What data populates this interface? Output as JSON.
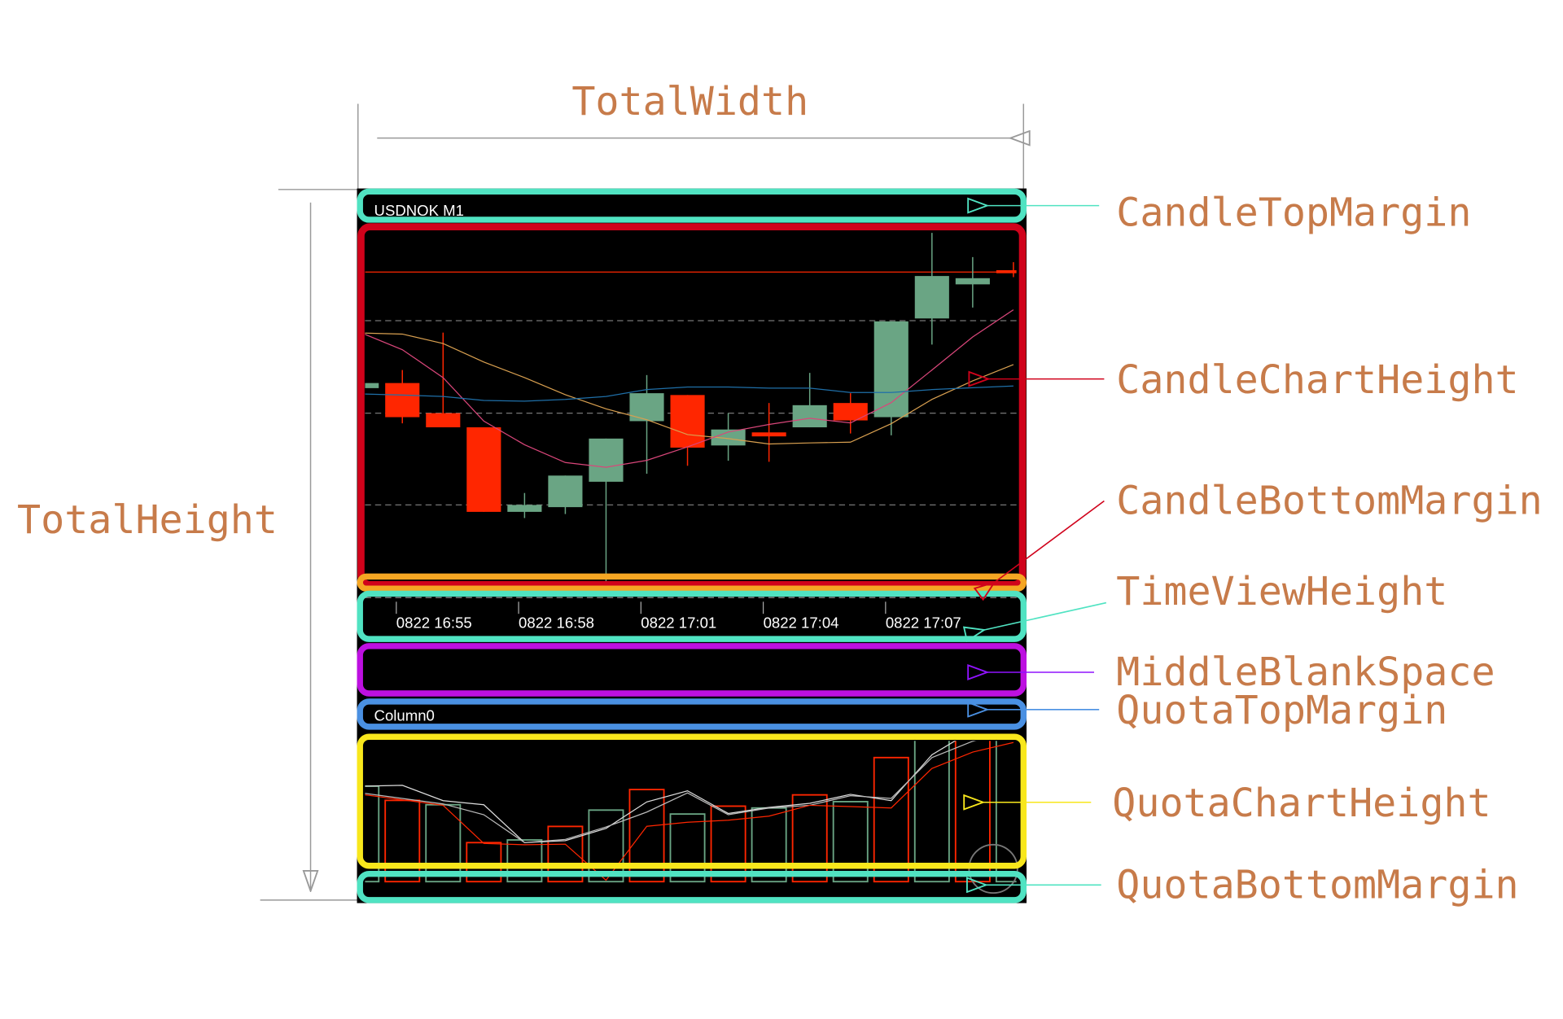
{
  "labels": {
    "total_width": "TotalWidth",
    "total_height": "TotalHeight",
    "candle_top_margin": "CandleTopMargin",
    "candle_chart_height": "CandleChartHeight",
    "candle_bottom_margin": "CandleBottomMargin",
    "time_view_height": "TimeViewHeight",
    "middle_blank_space": "MiddleBlankSpace",
    "quota_top_margin": "QuotaTopMargin",
    "quota_chart_height": "QuotaChartHeight",
    "quota_bottom_margin": "QuotaBottomMargin"
  },
  "chart": {
    "symbol_title": "USDNOK M1",
    "quota_title": "Column0",
    "time_labels": [
      "0822 16:55",
      "0822 16:58",
      "0822 17:01",
      "0822 17:04",
      "0822 17:07"
    ]
  },
  "colors": {
    "label": "#c77b4a",
    "teal": "#50e3c2",
    "red_box": "#d0021b",
    "orange": "#f5a623",
    "purple": "#bd10e0",
    "blue": "#4a90e2",
    "yellow": "#f8e71c",
    "up_candle": "#6aa584",
    "down_candle": "#ff2600",
    "ma_slow": "#d9a050",
    "ma_fast": "#d9467a",
    "ma_long": "#1f6fa8",
    "quota_line_1": "#dddddd",
    "quota_line_2": "#bbbbbb",
    "quota_line_3": "#ff2600"
  },
  "chart_data": {
    "type": "candlestick",
    "candles": [
      {
        "o": 54.7,
        "h": 56.1,
        "l": 54.7,
        "c": 56.1
      },
      {
        "o": 56.1,
        "h": 59.7,
        "l": 45.0,
        "c": 46.7
      },
      {
        "o": 47.8,
        "h": 70.0,
        "l": 43.9,
        "c": 43.9
      },
      {
        "o": 43.9,
        "h": 43.9,
        "l": 20.6,
        "c": 20.6
      },
      {
        "o": 20.6,
        "h": 25.8,
        "l": 18.9,
        "c": 22.5
      },
      {
        "o": 21.9,
        "h": 30.6,
        "l": 20.0,
        "c": 30.6
      },
      {
        "o": 28.9,
        "h": 40.8,
        "l": 1.1,
        "c": 40.8
      },
      {
        "o": 45.6,
        "h": 58.3,
        "l": 31.1,
        "c": 53.3
      },
      {
        "o": 52.8,
        "h": 52.8,
        "l": 33.3,
        "c": 38.3
      },
      {
        "o": 38.9,
        "h": 47.8,
        "l": 34.7,
        "c": 43.3
      },
      {
        "o": 42.5,
        "h": 50.6,
        "l": 34.4,
        "c": 41.4
      },
      {
        "o": 43.9,
        "h": 58.9,
        "l": 43.9,
        "c": 50.0
      },
      {
        "o": 50.6,
        "h": 53.3,
        "l": 42.2,
        "c": 45.8
      },
      {
        "o": 46.7,
        "h": 73.1,
        "l": 41.7,
        "c": 73.1
      },
      {
        "o": 73.9,
        "h": 97.5,
        "l": 66.7,
        "c": 85.6
      },
      {
        "o": 83.3,
        "h": 90.8,
        "l": 76.9,
        "c": 85.0
      },
      {
        "o": 87.2,
        "h": 89.4,
        "l": 85.3,
        "c": 86.4
      }
    ],
    "current_price_line": 86.7,
    "grid_levels": [
      73.3,
      47.8,
      22.5,
      -3.0
    ],
    "ma_lines": {
      "slow": [
        69.9,
        69.6,
        67.0,
        61.9,
        57.6,
        52.9,
        49.0,
        46.0,
        41.9,
        40.8,
        39.3,
        39.6,
        39.8,
        44.9,
        51.6,
        56.7,
        61.2
      ],
      "fast": [
        69.9,
        65.3,
        57.6,
        45.6,
        39.1,
        34.2,
        32.9,
        34.8,
        38.5,
        42.6,
        44.7,
        46.4,
        45.1,
        50.7,
        59.7,
        68.8,
        76.3
      ],
      "long": [
        53.1,
        52.8,
        52.4,
        51.3,
        51.1,
        51.6,
        52.4,
        54.3,
        55.0,
        55.0,
        54.7,
        54.7,
        53.5,
        53.5,
        54.3,
        54.8,
        55.3
      ]
    },
    "quota": {
      "bars": [
        67.8,
        57.7,
        54.6,
        27.7,
        29.6,
        39.2,
        50.8,
        65.4,
        48.0,
        53.6,
        52.3,
        61.6,
        56.8,
        88.1,
        120,
        120,
        120
      ],
      "bar_colors": [
        "up",
        "down",
        "up",
        "down",
        "up",
        "down",
        "up",
        "down",
        "up",
        "down",
        "up",
        "down",
        "up",
        "down",
        "up",
        "down",
        "up"
      ],
      "lines": [
        [
          67.8,
          68.4,
          57.5,
          54.6,
          27.7,
          29.1,
          37.8,
          56.6,
          64.5,
          48.4,
          52.7,
          55.6,
          62.0,
          57.5,
          90.1,
          107.5,
          115.2
        ],
        [
          63.0,
          59.1,
          55.2,
          47.5,
          27.7,
          30.0,
          38.8,
          49.4,
          63.0,
          47.5,
          52.3,
          54.2,
          61.0,
          59.1,
          88.1,
          99.7,
          107.5
        ],
        [
          62.0,
          58.1,
          54.2,
          27.1,
          26.2,
          26.6,
          1.0,
          39.3,
          42.2,
          43.6,
          46.5,
          54.2,
          53.3,
          52.3,
          80.4,
          92.0,
          98.8
        ]
      ]
    }
  }
}
